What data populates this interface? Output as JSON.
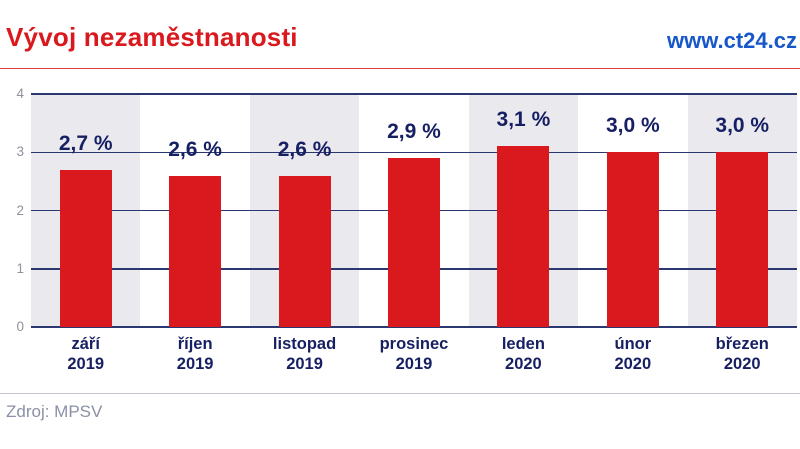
{
  "header": {
    "title": "Vývoj nezaměstnanosti",
    "url": "www.ct24.cz"
  },
  "footer": {
    "source": "Zdroj: MPSV"
  },
  "chart_data": {
    "type": "bar",
    "title": "Vývoj nezaměstnanosti",
    "categories": [
      "září 2019",
      "říjen 2019",
      "listopad 2019",
      "prosinec 2019",
      "leden 2020",
      "únor 2020",
      "březen 2020"
    ],
    "category_lines": [
      [
        "září",
        "2019"
      ],
      [
        "říjen",
        "2019"
      ],
      [
        "listopad",
        "2019"
      ],
      [
        "prosinec",
        "2019"
      ],
      [
        "leden",
        "2020"
      ],
      [
        "únor",
        "2020"
      ],
      [
        "březen",
        "2020"
      ]
    ],
    "values": [
      2.7,
      2.6,
      2.6,
      2.9,
      3.1,
      3.0,
      3.0
    ],
    "value_labels": [
      "2,7 %",
      "2,6 %",
      "2,6 %",
      "2,9 %",
      "3,1 %",
      "3,0 %",
      "3,0 %"
    ],
    "unit": "%",
    "xlabel": "",
    "ylabel": "",
    "ylim": [
      0,
      4
    ],
    "yticks": [
      0,
      1,
      2,
      3,
      4
    ],
    "grid": "horizontal",
    "legend": "none",
    "band_pattern": "alternating columns shaded starting with first",
    "colors": {
      "bar": "#d9191d",
      "accent_red": "#d9191d",
      "label": "#171f63",
      "grid": "#2b3770",
      "band": "#e9e9ee",
      "axis_text": "#91919d",
      "link_blue": "#1757c9",
      "source_text": "#8b90a6",
      "divider": "#c4c4cd"
    }
  }
}
